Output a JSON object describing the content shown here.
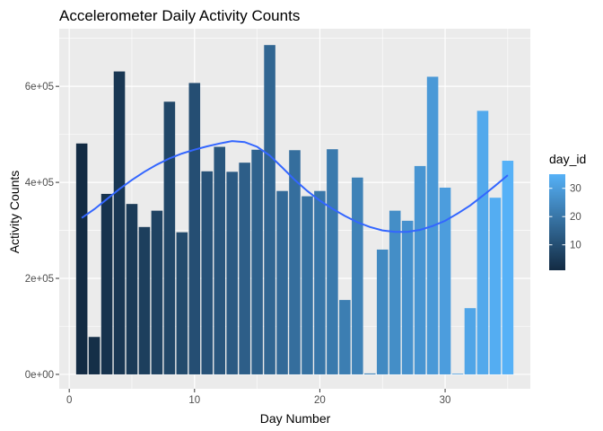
{
  "chart_data": {
    "type": "bar",
    "title": "Accelerometer Daily Activity Counts",
    "xlabel": "Day Number",
    "ylabel": "Activity Counts",
    "xlim": [
      -0.8,
      36.8
    ],
    "ylim": [
      -30000,
      720000
    ],
    "x_ticks": [
      0,
      10,
      20,
      30
    ],
    "x_tick_labels": [
      "0",
      "10",
      "20",
      "30"
    ],
    "y_ticks": [
      0,
      200000,
      400000,
      600000
    ],
    "y_tick_labels": [
      "0e+00",
      "2e+05",
      "4e+05",
      "6e+05"
    ],
    "grid": true,
    "legend_placement": "right",
    "fill_scale": {
      "title": "day_id",
      "low_color": "#132B43",
      "high_color": "#56B1F7",
      "min": 1,
      "max": 35,
      "breaks": [
        10,
        20,
        30
      ],
      "break_labels": [
        "10",
        "20",
        "30"
      ]
    },
    "smooth_color": "#3366FF",
    "x": [
      1,
      2,
      3,
      4,
      5,
      6,
      7,
      8,
      9,
      10,
      11,
      12,
      13,
      14,
      15,
      16,
      17,
      18,
      19,
      20,
      21,
      22,
      23,
      24,
      25,
      26,
      27,
      28,
      29,
      30,
      31,
      32,
      33,
      34,
      35
    ],
    "values": [
      481000,
      78000,
      376000,
      631000,
      355000,
      307000,
      341000,
      568000,
      296000,
      607000,
      423000,
      474000,
      422000,
      441000,
      468000,
      686000,
      382000,
      467000,
      371000,
      382000,
      469000,
      155000,
      410000,
      2000,
      260000,
      341000,
      320000,
      434000,
      620000,
      389000,
      1500,
      138000,
      549000,
      368000,
      445000
    ],
    "smooth": [
      [
        1,
        326000
      ],
      [
        2,
        344000
      ],
      [
        3,
        365000
      ],
      [
        4,
        386000
      ],
      [
        5,
        405000
      ],
      [
        6,
        422000
      ],
      [
        7,
        437000
      ],
      [
        8,
        450000
      ],
      [
        9,
        460000
      ],
      [
        10,
        468000
      ],
      [
        11,
        475000
      ],
      [
        12,
        481000
      ],
      [
        13,
        486000
      ],
      [
        14,
        484000
      ],
      [
        15,
        474000
      ],
      [
        16,
        456000
      ],
      [
        17,
        431000
      ],
      [
        18,
        405000
      ],
      [
        19,
        382000
      ],
      [
        20,
        362000
      ],
      [
        21,
        345000
      ],
      [
        22,
        330000
      ],
      [
        23,
        317000
      ],
      [
        24,
        307000
      ],
      [
        25,
        300000
      ],
      [
        26,
        297000
      ],
      [
        27,
        297000
      ],
      [
        28,
        301000
      ],
      [
        29,
        309000
      ],
      [
        30,
        320000
      ],
      [
        31,
        335000
      ],
      [
        32,
        352000
      ],
      [
        33,
        372000
      ],
      [
        34,
        393000
      ],
      [
        35,
        415000
      ]
    ]
  }
}
